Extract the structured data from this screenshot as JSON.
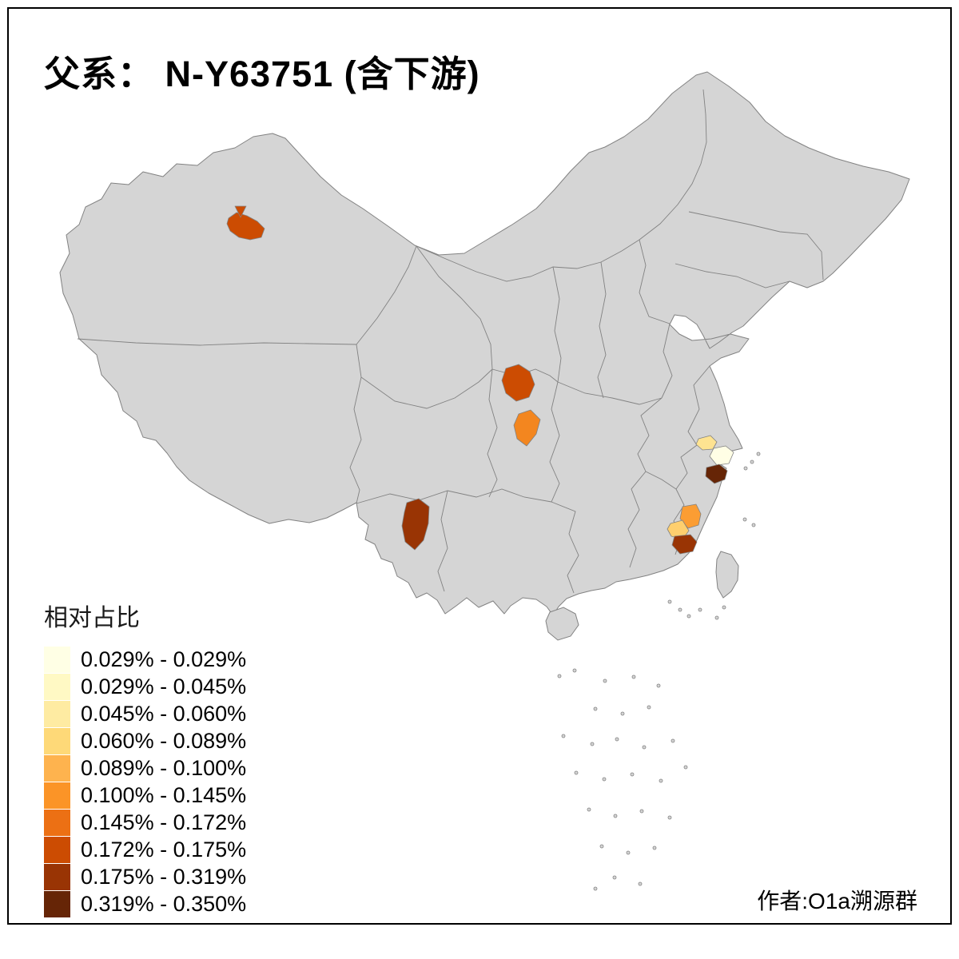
{
  "title": "父系： N-Y63751 (含下游)",
  "credit": "作者:O1a溯源群",
  "legend": {
    "title": "相对占比",
    "bins": [
      {
        "label": "0.029% - 0.029%",
        "color": "#FFFFE5"
      },
      {
        "label": "0.029% - 0.045%",
        "color": "#FFF9C4"
      },
      {
        "label": "0.045% - 0.060%",
        "color": "#FEEBA2"
      },
      {
        "label": "0.060% - 0.089%",
        "color": "#FED978"
      },
      {
        "label": "0.089% - 0.100%",
        "color": "#FEB34E"
      },
      {
        "label": "0.100% - 0.145%",
        "color": "#FB9427"
      },
      {
        "label": "0.145% - 0.172%",
        "color": "#EC7014"
      },
      {
        "label": "0.172% - 0.175%",
        "color": "#CC4C02"
      },
      {
        "label": "0.175% - 0.319%",
        "color": "#993404"
      },
      {
        "label": "0.319% - 0.350%",
        "color": "#662506"
      }
    ]
  },
  "map": {
    "land_color": "#d5d5d5",
    "border_color": "#828282",
    "sea_color": "#ffffff",
    "regions": [
      {
        "id": "northwest-patch",
        "color": "#CC4C02"
      },
      {
        "id": "northwest-marker",
        "color": "#CC4C02"
      },
      {
        "id": "central-upper-patch",
        "color": "#CC4C02"
      },
      {
        "id": "central-lower-patch",
        "color": "#F3861F"
      },
      {
        "id": "southwest-patch",
        "color": "#993404"
      },
      {
        "id": "east-coast-pale-patch",
        "color": "#FEE391"
      },
      {
        "id": "east-coast-cream-patch",
        "color": "#FFFEE5"
      },
      {
        "id": "east-coast-dark-patch",
        "color": "#662506"
      },
      {
        "id": "southeast-orange-patch",
        "color": "#FB9D33"
      },
      {
        "id": "southeast-light-patch",
        "color": "#FECF6E"
      },
      {
        "id": "southeast-dark-patch",
        "color": "#993404"
      }
    ]
  }
}
